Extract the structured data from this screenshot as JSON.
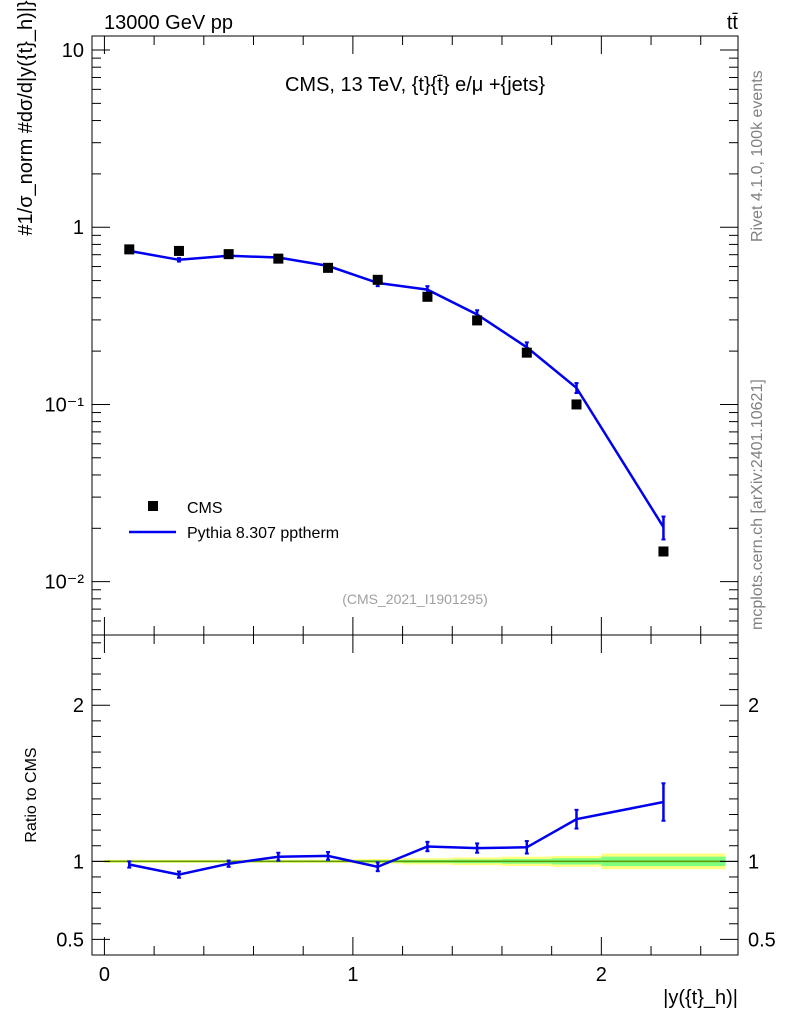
{
  "header": {
    "left": "13000 GeV pp",
    "right": "tt̄"
  },
  "side_labels": {
    "rivet": "Rivet 4.1.0,  100k events",
    "mcplots": "mcplots.cern.ch [arXiv:2401.10621]"
  },
  "colors": {
    "data": "#000000",
    "mc": "#0000ee",
    "band_outer": "#ffff7f",
    "band_inner": "#7fff7f",
    "reference_line": "#5c9a00"
  },
  "chart_data": [
    {
      "type": "scatter",
      "panel": "main",
      "title": "CMS, 13 TeV, {t}{t̄} e/μ +{jets}",
      "analysis_ref": "(CMS_2021_I1901295)",
      "xlabel": "|y({t}_h)|",
      "ylabel": "#1/σ_norm #dσ/d|y({t}_h)|}",
      "yscale": "log",
      "xlim": [
        -0.05,
        2.55
      ],
      "ylim": [
        0.005,
        12
      ],
      "yticks": [
        0.01,
        0.1,
        1,
        10
      ],
      "ytick_labels": [
        "10⁻²",
        "10⁻¹",
        "1",
        "10"
      ],
      "legend_position": "lower-left",
      "series": [
        {
          "name": "CMS",
          "style": "markers",
          "x": [
            0.1,
            0.3,
            0.5,
            0.7,
            0.9,
            1.1,
            1.3,
            1.5,
            1.7,
            1.9,
            2.25
          ],
          "y": [
            0.75,
            0.735,
            0.705,
            0.665,
            0.59,
            0.505,
            0.405,
            0.298,
            0.196,
            0.1,
            0.0148
          ]
        },
        {
          "name": "Pythia 8.307 pptherm",
          "style": "line",
          "x": [
            0.1,
            0.3,
            0.5,
            0.7,
            0.9,
            1.1,
            1.3,
            1.5,
            1.7,
            1.9,
            2.25
          ],
          "y": [
            0.735,
            0.655,
            0.69,
            0.675,
            0.605,
            0.485,
            0.445,
            0.322,
            0.21,
            0.124,
            0.0203
          ],
          "yerr": [
            0.015,
            0.015,
            0.015,
            0.015,
            0.015,
            0.02,
            0.02,
            0.018,
            0.014,
            0.008,
            0.003
          ]
        }
      ]
    },
    {
      "type": "line",
      "panel": "ratio",
      "ylabel": "Ratio to CMS",
      "xlabel": "|y({t}_h)|",
      "xlim": [
        -0.05,
        2.55
      ],
      "ylim": [
        0.4,
        2.45
      ],
      "yticks": [
        0.5,
        1,
        2
      ],
      "ytick_labels": [
        "0.5",
        "1",
        "2"
      ],
      "xticks": [
        0,
        1,
        2
      ],
      "xtick_labels": [
        "0",
        "1",
        "2"
      ],
      "series": [
        {
          "name": "Pythia 8.307 pptherm / CMS",
          "x": [
            0.1,
            0.3,
            0.5,
            0.7,
            0.9,
            1.1,
            1.3,
            1.5,
            1.7,
            1.9,
            2.25
          ],
          "y": [
            0.98,
            0.915,
            0.985,
            1.03,
            1.035,
            0.965,
            1.095,
            1.085,
            1.09,
            1.27,
            1.38
          ],
          "yerr": [
            0.02,
            0.02,
            0.02,
            0.025,
            0.025,
            0.028,
            0.03,
            0.03,
            0.04,
            0.06,
            0.12
          ]
        }
      ],
      "uncertainty_band": {
        "x_edges": [
          0,
          0.2,
          0.4,
          0.6,
          0.8,
          1.0,
          1.2,
          1.4,
          1.6,
          1.8,
          2.0,
          2.5
        ],
        "outer": [
          0.01,
          0.01,
          0.01,
          0.01,
          0.01,
          0.015,
          0.02,
          0.025,
          0.03,
          0.035,
          0.05
        ],
        "inner": [
          0.005,
          0.005,
          0.005,
          0.005,
          0.005,
          0.008,
          0.01,
          0.012,
          0.015,
          0.02,
          0.03
        ]
      }
    }
  ]
}
